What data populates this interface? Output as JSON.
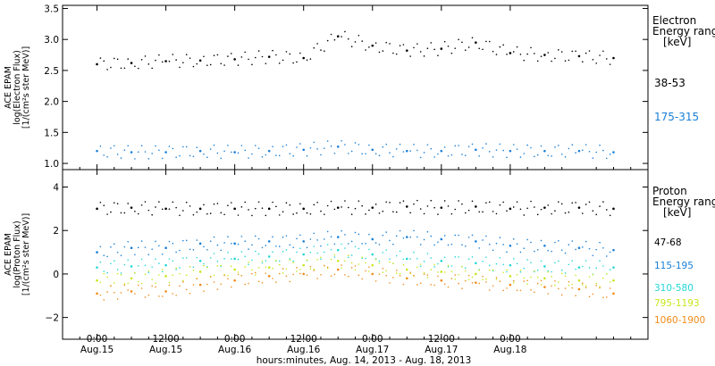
{
  "chart_data": [
    {
      "panel": "electron",
      "type": "scatter",
      "ylabel_lines": [
        "ACE EPAM",
        "log(Electron Flux)",
        "[1/(cm²s ster MeV)]"
      ],
      "ylim": [
        0.9,
        3.55
      ],
      "y_ticks": [
        1.0,
        1.5,
        2.0,
        2.5,
        3.0,
        3.5
      ],
      "y_tick_labels": [
        "1.0",
        "1.5",
        "2.0",
        "2.5",
        "3.0",
        "3.5"
      ],
      "legend_title": [
        "Electron",
        "Energy range",
        "[keV]"
      ],
      "series": [
        {
          "name": "38-53",
          "color": "#000000",
          "x_hours": [
            0,
            6,
            12,
            18,
            24,
            30,
            36,
            42,
            48,
            54,
            60,
            66,
            72,
            78,
            84,
            90
          ],
          "values": [
            2.6,
            2.62,
            2.65,
            2.66,
            2.68,
            2.72,
            2.7,
            3.05,
            2.9,
            2.82,
            2.85,
            2.95,
            2.78,
            2.75,
            2.73,
            2.7
          ]
        },
        {
          "name": "175-315",
          "color": "#1a7fd6",
          "x_hours": [
            0,
            6,
            12,
            18,
            24,
            30,
            36,
            42,
            48,
            54,
            60,
            66,
            72,
            78,
            84,
            90
          ],
          "values": [
            1.2,
            1.18,
            1.18,
            1.2,
            1.18,
            1.2,
            1.22,
            1.27,
            1.22,
            1.2,
            1.2,
            1.22,
            1.2,
            1.2,
            1.2,
            1.18
          ]
        }
      ]
    },
    {
      "panel": "proton",
      "type": "scatter",
      "ylabel_lines": [
        "ACE EPAM",
        "log(Proton Flux)",
        "[1/(cm²s ster MeV)]"
      ],
      "ylim": [
        -3.0,
        4.8
      ],
      "y_ticks": [
        -2,
        0,
        2,
        4
      ],
      "y_tick_labels": [
        "−2",
        "0",
        "2",
        "4"
      ],
      "legend_title": [
        "Proton",
        "Energy range",
        "[keV]"
      ],
      "series": [
        {
          "name": "47-68",
          "color": "#000000",
          "x_hours": [
            0,
            6,
            12,
            18,
            24,
            30,
            36,
            42,
            48,
            54,
            60,
            66,
            72,
            78,
            84,
            90
          ],
          "values": [
            3.0,
            3.05,
            3.0,
            3.0,
            3.0,
            3.0,
            3.0,
            3.05,
            3.05,
            3.1,
            3.05,
            3.1,
            3.0,
            3.05,
            3.05,
            3.0
          ]
        },
        {
          "name": "115-195",
          "color": "#1a7fd6",
          "x_hours": [
            0,
            6,
            12,
            18,
            24,
            30,
            36,
            42,
            48,
            54,
            60,
            66,
            72,
            78,
            84,
            90
          ],
          "values": [
            1.0,
            1.2,
            1.2,
            1.4,
            1.4,
            1.5,
            1.5,
            1.7,
            1.6,
            1.7,
            1.6,
            1.5,
            1.3,
            1.3,
            1.2,
            1.1
          ]
        },
        {
          "name": "310-580",
          "color": "#22d6d6",
          "x_hours": [
            0,
            6,
            12,
            18,
            24,
            30,
            36,
            42,
            48,
            54,
            60,
            66,
            72,
            78,
            84,
            90
          ],
          "values": [
            0.3,
            0.35,
            0.4,
            0.6,
            0.7,
            0.8,
            0.9,
            1.1,
            0.9,
            0.7,
            0.6,
            0.5,
            0.4,
            0.35,
            0.3,
            0.3
          ]
        },
        {
          "name": "795-1193",
          "color": "#c8e61a",
          "x_hours": [
            0,
            6,
            12,
            18,
            24,
            30,
            36,
            42,
            48,
            54,
            60,
            66,
            72,
            78,
            84,
            90
          ],
          "values": [
            -0.3,
            -0.2,
            -0.1,
            0.1,
            0.2,
            0.3,
            0.4,
            0.6,
            0.4,
            0.2,
            0.1,
            0.0,
            -0.1,
            -0.2,
            -0.3,
            -0.3
          ]
        },
        {
          "name": "1060-1900",
          "color": "#f08c1a",
          "x_hours": [
            0,
            6,
            12,
            18,
            24,
            30,
            36,
            42,
            48,
            54,
            60,
            66,
            72,
            78,
            84,
            90
          ],
          "values": [
            -0.9,
            -0.8,
            -0.8,
            -0.5,
            -0.3,
            -0.1,
            0.0,
            0.2,
            0.0,
            -0.2,
            -0.3,
            -0.4,
            -0.5,
            -0.6,
            -0.7,
            -0.9
          ]
        }
      ]
    }
  ],
  "x_axis": {
    "xlabel": "hours:minutes, Aug. 14, 2013 - Aug. 18, 2013",
    "xlim_hours": [
      -6,
      96
    ],
    "ticks": [
      {
        "hour": 0,
        "time": "0:00",
        "date": "Aug.15"
      },
      {
        "hour": 12,
        "time": "12:00",
        "date": "Aug.15"
      },
      {
        "hour": 24,
        "time": "0:00",
        "date": "Aug.16"
      },
      {
        "hour": 36,
        "time": "12:00",
        "date": "Aug.16"
      },
      {
        "hour": 48,
        "time": "0:00",
        "date": "Aug.17"
      },
      {
        "hour": 60,
        "time": "12:00",
        "date": "Aug.17"
      },
      {
        "hour": 72,
        "time": "0:00",
        "date": "Aug.18"
      }
    ]
  },
  "colors": {
    "axis": "#000000",
    "background": "#ffffff"
  }
}
